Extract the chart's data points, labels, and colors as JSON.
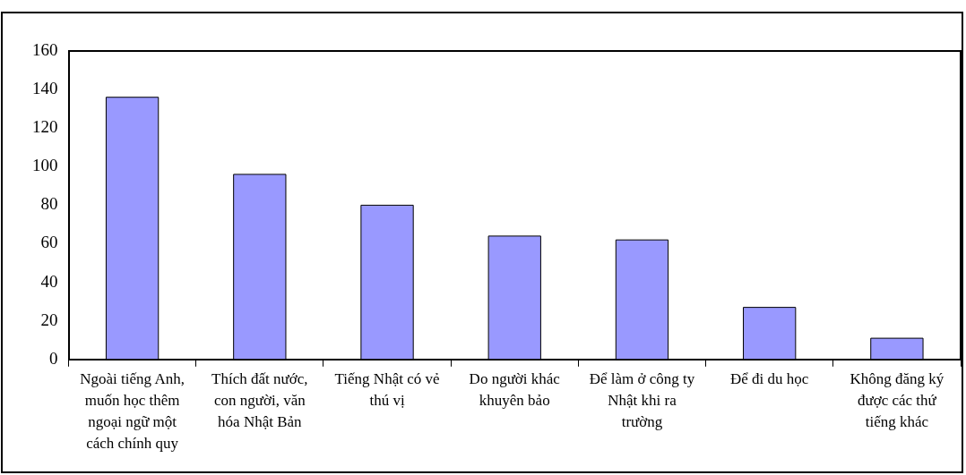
{
  "chart_data": {
    "type": "bar",
    "categories": [
      "Ngoài tiếng Anh, muốn học thêm ngoại ngữ một cách chính quy",
      "Thích đất nước, con người, văn hóa Nhật Bản",
      "Tiếng Nhật có vẻ thú vị",
      "Do người khác khuyên bảo",
      "Để làm ở công ty Nhật khi ra trường",
      "Để đi du học",
      "Không đăng ký được các thứ tiếng khác"
    ],
    "values": [
      136,
      96,
      80,
      64,
      62,
      27,
      11
    ],
    "color": "#9999ff",
    "ylim": [
      0,
      160
    ],
    "yticks": [
      0,
      20,
      40,
      60,
      80,
      100,
      120,
      140,
      160
    ],
    "grid": false,
    "legend": false
  }
}
